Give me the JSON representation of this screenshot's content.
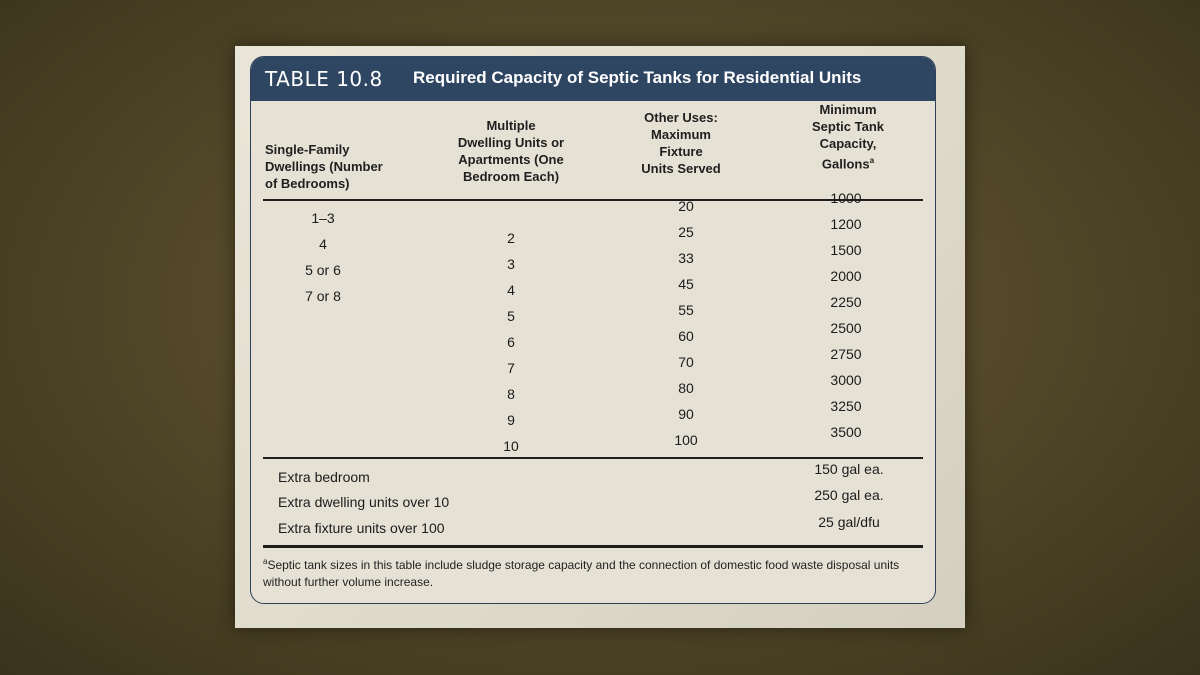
{
  "table": {
    "number": "TABLE 10.8",
    "title": "Required Capacity of Septic Tanks for Residential Units",
    "headers": {
      "single_family": "Single-Family\nDwellings (Number\nof Bedrooms)",
      "multiple": "Multiple\nDwelling Units or\nApartments (One\nBedroom Each)",
      "other_uses": "Other Uses:\nMaximum\nFixture\nUnits Served",
      "capacity": "Minimum\nSeptic Tank\nCapacity,\nGallons",
      "capacity_note_marker": "a"
    },
    "bedrooms": [
      "1–3",
      "4",
      "5 or 6",
      "7 or 8"
    ],
    "dwelling_units": [
      "2",
      "3",
      "4",
      "5",
      "6",
      "7",
      "8",
      "9",
      "10"
    ],
    "fixture_units": [
      "20",
      "25",
      "33",
      "45",
      "55",
      "60",
      "70",
      "80",
      "90",
      "100"
    ],
    "capacities": [
      "1000",
      "1200",
      "1500",
      "2000",
      "2250",
      "2500",
      "2750",
      "3000",
      "3250",
      "3500"
    ],
    "extras": [
      {
        "label": "Extra bedroom",
        "value": "150 gal ea."
      },
      {
        "label": "Extra dwelling units over 10",
        "value": "250 gal ea."
      },
      {
        "label": "Extra fixture units over 100",
        "value": "25 gal/dfu"
      }
    ],
    "footnote_marker": "a",
    "footnote": "Septic tank sizes in this table include sludge storage capacity and the connection of domestic food waste disposal units without further volume increase."
  }
}
